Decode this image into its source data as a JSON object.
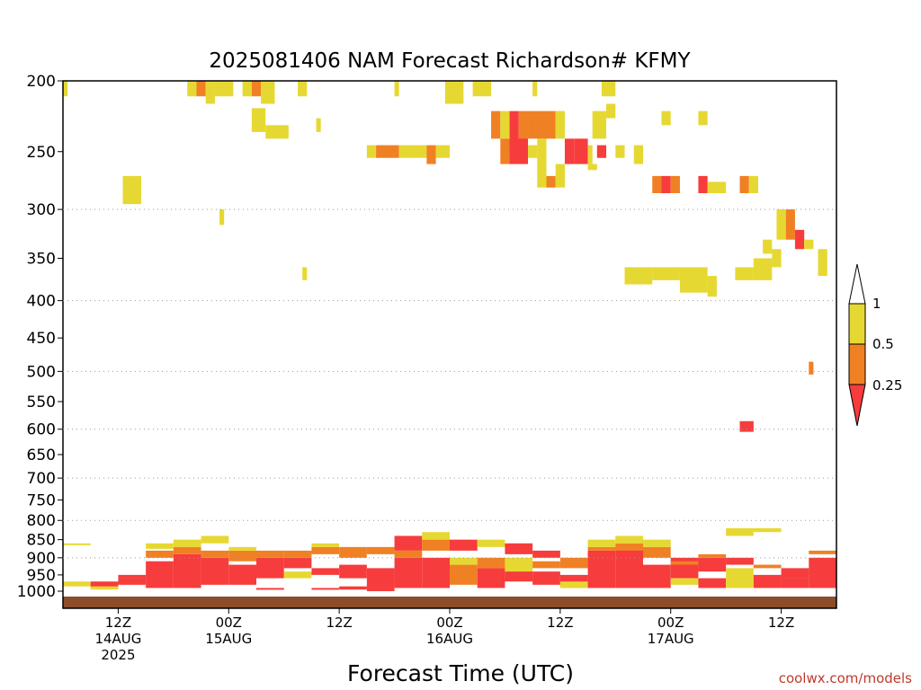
{
  "chart_data": {
    "type": "heatmap",
    "title": "2025081406 NAM Forecast Richardson# KFMY",
    "xlabel": "Forecast Time (UTC)",
    "ylabel": "",
    "credit": "coolwx.com/models",
    "y_scale": "log-pressure (hPa), inverted",
    "ylim": [
      200,
      1020
    ],
    "xlim_hours": [
      0,
      84
    ],
    "y_ticks": [
      200,
      250,
      300,
      350,
      400,
      450,
      500,
      550,
      600,
      650,
      700,
      750,
      800,
      850,
      900,
      950,
      1000
    ],
    "y_gridlines": [
      300,
      400,
      500,
      600,
      700,
      800,
      900
    ],
    "x_ticks": [
      {
        "hour": 6,
        "lines": [
          "12Z",
          "14AUG",
          "2025"
        ]
      },
      {
        "hour": 18,
        "lines": [
          "00Z",
          "15AUG"
        ]
      },
      {
        "hour": 30,
        "lines": [
          "12Z"
        ]
      },
      {
        "hour": 42,
        "lines": [
          "00Z",
          "16AUG"
        ]
      },
      {
        "hour": 54,
        "lines": [
          "12Z"
        ]
      },
      {
        "hour": 66,
        "lines": [
          "00Z",
          "17AUG"
        ]
      },
      {
        "hour": 78,
        "lines": [
          "12Z"
        ]
      }
    ],
    "colorbar": {
      "ticks": [
        "1",
        "0.5",
        "0.25"
      ],
      "bins": [
        {
          "range": "0.5-1",
          "color": "#e6d832"
        },
        {
          "range": "0.25-0.5",
          "color": "#f08024"
        },
        {
          "range": "<0.25",
          "color": "#f63c3c"
        }
      ]
    },
    "ground_color": "#8b4d2a",
    "colors": {
      "yellow": "#e6d832",
      "orange": "#f08024",
      "red": "#f63c3c"
    },
    "cells_upper": [
      [
        0.0,
        0.5,
        200,
        210,
        "yellow"
      ],
      [
        6.5,
        8.5,
        270,
        295,
        "yellow"
      ],
      [
        13.5,
        14.5,
        200,
        210,
        "yellow"
      ],
      [
        14.5,
        15.5,
        200,
        210,
        "orange"
      ],
      [
        15.5,
        16.5,
        200,
        215,
        "yellow"
      ],
      [
        16.5,
        18.5,
        200,
        210,
        "yellow"
      ],
      [
        19.5,
        20.5,
        200,
        210,
        "yellow"
      ],
      [
        20.5,
        21.5,
        200,
        210,
        "orange"
      ],
      [
        21.5,
        23.0,
        200,
        215,
        "yellow"
      ],
      [
        20.5,
        22.0,
        218,
        235,
        "yellow"
      ],
      [
        22.0,
        24.5,
        230,
        240,
        "yellow"
      ],
      [
        25.5,
        26.5,
        200,
        210,
        "yellow"
      ],
      [
        27.5,
        28.0,
        225,
        235,
        "yellow"
      ],
      [
        36.0,
        36.5,
        200,
        210,
        "yellow"
      ],
      [
        41.5,
        43.5,
        200,
        215,
        "yellow"
      ],
      [
        44.5,
        46.5,
        200,
        210,
        "yellow"
      ],
      [
        46.5,
        47.5,
        220,
        240,
        "orange"
      ],
      [
        47.5,
        48.5,
        220,
        240,
        "yellow"
      ],
      [
        48.5,
        49.5,
        220,
        250,
        "red"
      ],
      [
        49.5,
        50.5,
        220,
        250,
        "orange"
      ],
      [
        50.5,
        53.5,
        220,
        240,
        "orange"
      ],
      [
        53.5,
        54.5,
        220,
        240,
        "yellow"
      ],
      [
        47.5,
        48.5,
        240,
        260,
        "orange"
      ],
      [
        48.5,
        50.5,
        240,
        260,
        "red"
      ],
      [
        50.5,
        51.5,
        245,
        255,
        "yellow"
      ],
      [
        51.0,
        51.5,
        200,
        210,
        "yellow"
      ],
      [
        51.5,
        52.5,
        240,
        280,
        "yellow"
      ],
      [
        52.5,
        53.5,
        270,
        280,
        "orange"
      ],
      [
        53.5,
        54.5,
        260,
        280,
        "yellow"
      ],
      [
        54.5,
        55.5,
        240,
        260,
        "red"
      ],
      [
        55.5,
        57.0,
        240,
        260,
        "red"
      ],
      [
        57.0,
        57.5,
        245,
        260,
        "yellow"
      ],
      [
        57.5,
        59.0,
        220,
        240,
        "yellow"
      ],
      [
        59.0,
        60.0,
        215,
        225,
        "yellow"
      ],
      [
        58.5,
        60.0,
        200,
        210,
        "yellow"
      ],
      [
        57.0,
        58.0,
        260,
        265,
        "yellow"
      ],
      [
        58.0,
        59.0,
        245,
        255,
        "red"
      ],
      [
        60.0,
        61.0,
        245,
        255,
        "yellow"
      ],
      [
        62.0,
        63.0,
        245,
        260,
        "yellow"
      ],
      [
        64.0,
        65.0,
        270,
        285,
        "orange"
      ],
      [
        65.0,
        66.0,
        270,
        285,
        "red"
      ],
      [
        66.0,
        67.0,
        270,
        285,
        "orange"
      ],
      [
        69.0,
        70.0,
        270,
        285,
        "red"
      ],
      [
        70.0,
        72.0,
        275,
        285,
        "yellow"
      ],
      [
        73.5,
        74.5,
        270,
        285,
        "orange"
      ],
      [
        74.5,
        75.5,
        270,
        285,
        "yellow"
      ],
      [
        65.0,
        66.0,
        220,
        230,
        "yellow"
      ],
      [
        69.0,
        70.0,
        220,
        230,
        "yellow"
      ],
      [
        33.0,
        34.0,
        245,
        255,
        "yellow"
      ],
      [
        34.0,
        36.5,
        245,
        255,
        "orange"
      ],
      [
        36.5,
        38.0,
        245,
        255,
        "yellow"
      ],
      [
        38.0,
        39.5,
        245,
        255,
        "yellow"
      ],
      [
        39.5,
        40.5,
        245,
        260,
        "orange"
      ],
      [
        40.5,
        42.0,
        245,
        255,
        "yellow"
      ],
      [
        17.0,
        17.5,
        300,
        315,
        "yellow"
      ],
      [
        26.0,
        26.5,
        360,
        375,
        "yellow"
      ],
      [
        77.5,
        78.5,
        300,
        330,
        "yellow"
      ],
      [
        78.5,
        79.5,
        300,
        330,
        "orange"
      ],
      [
        79.5,
        80.5,
        320,
        340,
        "red"
      ],
      [
        80.5,
        81.5,
        330,
        340,
        "yellow"
      ],
      [
        76.0,
        77.0,
        330,
        345,
        "yellow"
      ],
      [
        82.0,
        83.0,
        340,
        370,
        "yellow"
      ],
      [
        61.0,
        64.0,
        360,
        380,
        "yellow"
      ],
      [
        64.0,
        67.0,
        360,
        375,
        "yellow"
      ],
      [
        67.0,
        70.0,
        360,
        390,
        "yellow"
      ],
      [
        70.0,
        71.0,
        370,
        395,
        "yellow"
      ],
      [
        73.0,
        75.0,
        360,
        375,
        "yellow"
      ],
      [
        75.0,
        77.0,
        350,
        375,
        "yellow"
      ],
      [
        77.0,
        78.0,
        340,
        360,
        "yellow"
      ],
      [
        81.0,
        81.5,
        485,
        505,
        "orange"
      ],
      [
        73.5,
        75.0,
        585,
        605,
        "red"
      ]
    ],
    "cells_low": [
      [
        0,
        3,
        [
          [
            860,
            865,
            "yellow"
          ],
          [
            970,
            985,
            "yellow"
          ]
        ]
      ],
      [
        3,
        6,
        [
          [
            970,
            990,
            "red"
          ],
          [
            985,
            995,
            "yellow"
          ]
        ]
      ],
      [
        6,
        9,
        [
          [
            960,
            980,
            "red"
          ],
          [
            950,
            960,
            "red"
          ]
        ]
      ],
      [
        9,
        12,
        [
          [
            910,
            990,
            "red"
          ],
          [
            880,
            900,
            "orange"
          ],
          [
            860,
            875,
            "yellow"
          ]
        ]
      ],
      [
        12,
        15,
        [
          [
            890,
            990,
            "red"
          ],
          [
            870,
            890,
            "orange"
          ],
          [
            850,
            870,
            "yellow"
          ]
        ]
      ],
      [
        15,
        18,
        [
          [
            900,
            980,
            "red"
          ],
          [
            880,
            900,
            "orange"
          ],
          [
            840,
            860,
            "yellow"
          ]
        ]
      ],
      [
        18,
        21,
        [
          [
            920,
            980,
            "red"
          ],
          [
            880,
            910,
            "orange"
          ],
          [
            870,
            880,
            "yellow"
          ]
        ]
      ],
      [
        21,
        24,
        [
          [
            900,
            960,
            "red"
          ],
          [
            880,
            900,
            "orange"
          ],
          [
            990,
            995,
            "red"
          ]
        ]
      ],
      [
        24,
        27,
        [
          [
            900,
            930,
            "red"
          ],
          [
            880,
            900,
            "orange"
          ],
          [
            940,
            960,
            "yellow"
          ]
        ]
      ],
      [
        27,
        30,
        [
          [
            870,
            890,
            "orange"
          ],
          [
            860,
            870,
            "yellow"
          ],
          [
            930,
            950,
            "red"
          ],
          [
            990,
            995,
            "red"
          ]
        ]
      ],
      [
        30,
        33,
        [
          [
            870,
            900,
            "orange"
          ],
          [
            920,
            960,
            "red"
          ],
          [
            985,
            995,
            "red"
          ]
        ]
      ],
      [
        33,
        36,
        [
          [
            870,
            890,
            "orange"
          ],
          [
            930,
            990,
            "red"
          ],
          [
            990,
            1000,
            "red"
          ]
        ]
      ],
      [
        36,
        39,
        [
          [
            840,
            880,
            "red"
          ],
          [
            900,
            990,
            "red"
          ],
          [
            880,
            900,
            "orange"
          ]
        ]
      ],
      [
        39,
        42,
        [
          [
            850,
            880,
            "orange"
          ],
          [
            900,
            990,
            "red"
          ],
          [
            830,
            850,
            "yellow"
          ]
        ]
      ],
      [
        42,
        45,
        [
          [
            850,
            880,
            "red"
          ],
          [
            920,
            980,
            "orange"
          ],
          [
            900,
            920,
            "yellow"
          ]
        ]
      ],
      [
        45,
        48,
        [
          [
            850,
            870,
            "yellow"
          ],
          [
            930,
            990,
            "red"
          ],
          [
            900,
            930,
            "orange"
          ]
        ]
      ],
      [
        48,
        51,
        [
          [
            860,
            890,
            "red"
          ],
          [
            900,
            960,
            "yellow"
          ],
          [
            940,
            970,
            "red"
          ]
        ]
      ],
      [
        51,
        54,
        [
          [
            880,
            900,
            "red"
          ],
          [
            910,
            930,
            "orange"
          ],
          [
            940,
            980,
            "red"
          ]
        ]
      ],
      [
        54,
        57,
        [
          [
            900,
            930,
            "orange"
          ],
          [
            950,
            990,
            "red"
          ],
          [
            970,
            990,
            "yellow"
          ]
        ]
      ],
      [
        57,
        60,
        [
          [
            880,
            990,
            "red"
          ],
          [
            870,
            880,
            "orange"
          ],
          [
            850,
            870,
            "yellow"
          ]
        ]
      ],
      [
        60,
        63,
        [
          [
            870,
            990,
            "red"
          ],
          [
            860,
            880,
            "orange"
          ],
          [
            840,
            860,
            "yellow"
          ]
        ]
      ],
      [
        63,
        66,
        [
          [
            870,
            900,
            "orange"
          ],
          [
            920,
            990,
            "red"
          ],
          [
            850,
            870,
            "yellow"
          ]
        ]
      ],
      [
        66,
        69,
        [
          [
            900,
            960,
            "red"
          ],
          [
            910,
            920,
            "orange"
          ],
          [
            960,
            980,
            "yellow"
          ]
        ]
      ],
      [
        69,
        72,
        [
          [
            900,
            940,
            "red"
          ],
          [
            890,
            900,
            "orange"
          ],
          [
            960,
            990,
            "red"
          ]
        ]
      ],
      [
        72,
        75,
        [
          [
            930,
            990,
            "yellow"
          ],
          [
            900,
            920,
            "red"
          ],
          [
            820,
            840,
            "yellow"
          ]
        ]
      ],
      [
        75,
        78,
        [
          [
            950,
            990,
            "red"
          ],
          [
            820,
            830,
            "yellow"
          ],
          [
            920,
            930,
            "orange"
          ]
        ]
      ],
      [
        78,
        81,
        [
          [
            960,
            990,
            "red"
          ],
          [
            930,
            960,
            "red"
          ]
        ]
      ],
      [
        81,
        84,
        [
          [
            900,
            990,
            "red"
          ],
          [
            880,
            890,
            "orange"
          ],
          [
            930,
            950,
            "red"
          ]
        ]
      ]
    ]
  }
}
